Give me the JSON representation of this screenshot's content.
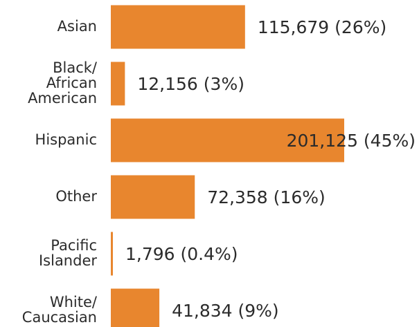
{
  "chart_data": {
    "type": "bar",
    "orientation": "horizontal",
    "categories": [
      "Asian",
      "Black/ African American",
      "Hispanic",
      "Other",
      "Pacific Islander",
      "White/ Caucasian"
    ],
    "values": [
      115679,
      12156,
      201125,
      72358,
      1796,
      41834
    ],
    "value_labels": [
      "115,679 (26%)",
      "12,156 (3%)",
      "201,125 (45%)",
      "72,358 (16%)",
      "1,796 (0.4%)",
      "41,834 (9%)"
    ],
    "color": "#e8862e"
  }
}
